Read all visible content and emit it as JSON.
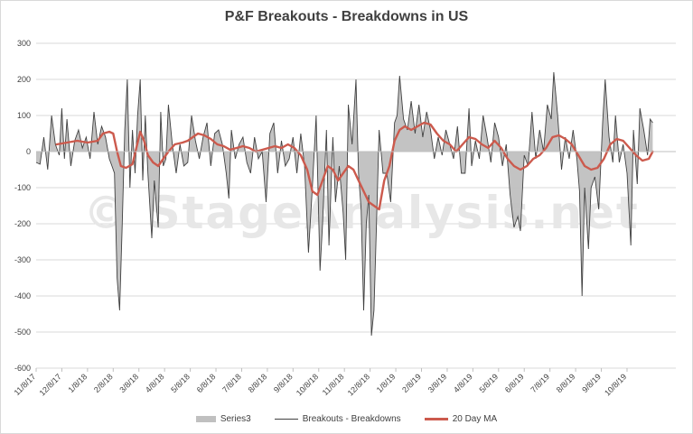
{
  "chart_data": {
    "type": "line",
    "title": "P&F Breakouts - Breakdowns in US",
    "watermark": "© StageAnalysis.net",
    "y_ticks": [
      300,
      200,
      100,
      0,
      -100,
      -200,
      -300,
      -400,
      -500,
      -600
    ],
    "ylim": [
      -600,
      300
    ],
    "x_ticks": [
      "11/8/17",
      "12/8/17",
      "1/8/18",
      "2/8/18",
      "3/8/18",
      "4/8/18",
      "5/8/18",
      "6/8/18",
      "7/8/18",
      "8/8/18",
      "9/8/18",
      "10/8/18",
      "11/8/18",
      "12/8/18",
      "1/8/19",
      "2/8/19",
      "3/8/19",
      "4/8/19",
      "5/8/19",
      "6/8/19",
      "7/8/19",
      "8/8/19",
      "9/8/19",
      "10/8/19"
    ],
    "x_range_months": [
      0,
      24.9
    ],
    "series": [
      {
        "name": "Series3",
        "style": "area",
        "color": "#c0c0c0",
        "same_values_as": "Breakouts - Breakdowns"
      },
      {
        "name": "Breakouts - Breakdowns",
        "style": "line",
        "color": "#404040",
        "points": [
          [
            0.0,
            -30
          ],
          [
            0.15,
            -35
          ],
          [
            0.3,
            40
          ],
          [
            0.45,
            -50
          ],
          [
            0.6,
            100
          ],
          [
            0.75,
            20
          ],
          [
            0.9,
            -10
          ],
          [
            1.0,
            120
          ],
          [
            1.1,
            -20
          ],
          [
            1.2,
            90
          ],
          [
            1.35,
            -40
          ],
          [
            1.5,
            30
          ],
          [
            1.65,
            60
          ],
          [
            1.8,
            10
          ],
          [
            1.95,
            40
          ],
          [
            2.1,
            -20
          ],
          [
            2.25,
            110
          ],
          [
            2.4,
            20
          ],
          [
            2.55,
            70
          ],
          [
            2.7,
            40
          ],
          [
            2.85,
            -20
          ],
          [
            2.95,
            -40
          ],
          [
            3.05,
            -60
          ],
          [
            3.15,
            -350
          ],
          [
            3.25,
            -440
          ],
          [
            3.35,
            -200
          ],
          [
            3.45,
            60
          ],
          [
            3.55,
            200
          ],
          [
            3.65,
            -100
          ],
          [
            3.75,
            60
          ],
          [
            3.85,
            -60
          ],
          [
            3.95,
            100
          ],
          [
            4.05,
            200
          ],
          [
            4.15,
            -80
          ],
          [
            4.25,
            100
          ],
          [
            4.35,
            -60
          ],
          [
            4.5,
            -240
          ],
          [
            4.6,
            -80
          ],
          [
            4.75,
            -210
          ],
          [
            4.85,
            110
          ],
          [
            4.95,
            -40
          ],
          [
            5.05,
            -20
          ],
          [
            5.15,
            130
          ],
          [
            5.3,
            20
          ],
          [
            5.45,
            -60
          ],
          [
            5.6,
            20
          ],
          [
            5.75,
            -40
          ],
          [
            5.9,
            -30
          ],
          [
            6.05,
            100
          ],
          [
            6.2,
            30
          ],
          [
            6.35,
            -20
          ],
          [
            6.5,
            40
          ],
          [
            6.65,
            80
          ],
          [
            6.8,
            -40
          ],
          [
            6.95,
            50
          ],
          [
            7.1,
            60
          ],
          [
            7.25,
            20
          ],
          [
            7.4,
            -60
          ],
          [
            7.5,
            -130
          ],
          [
            7.6,
            60
          ],
          [
            7.75,
            -20
          ],
          [
            7.9,
            20
          ],
          [
            8.05,
            40
          ],
          [
            8.2,
            -30
          ],
          [
            8.35,
            -60
          ],
          [
            8.5,
            40
          ],
          [
            8.65,
            -20
          ],
          [
            8.8,
            0
          ],
          [
            8.95,
            -140
          ],
          [
            9.1,
            50
          ],
          [
            9.25,
            80
          ],
          [
            9.4,
            -60
          ],
          [
            9.55,
            30
          ],
          [
            9.7,
            -40
          ],
          [
            9.85,
            -20
          ],
          [
            10.0,
            40
          ],
          [
            10.15,
            -60
          ],
          [
            10.3,
            50
          ],
          [
            10.45,
            -40
          ],
          [
            10.6,
            -280
          ],
          [
            10.75,
            -100
          ],
          [
            10.9,
            100
          ],
          [
            11.05,
            -330
          ],
          [
            11.15,
            -200
          ],
          [
            11.3,
            60
          ],
          [
            11.4,
            -260
          ],
          [
            11.55,
            40
          ],
          [
            11.65,
            -140
          ],
          [
            11.8,
            -40
          ],
          [
            11.95,
            -170
          ],
          [
            12.05,
            -300
          ],
          [
            12.15,
            130
          ],
          [
            12.3,
            20
          ],
          [
            12.45,
            200
          ],
          [
            12.55,
            -60
          ],
          [
            12.65,
            -160
          ],
          [
            12.75,
            -440
          ],
          [
            12.85,
            -200
          ],
          [
            12.95,
            -120
          ],
          [
            13.05,
            -510
          ],
          [
            13.15,
            -440
          ],
          [
            13.25,
            -200
          ],
          [
            13.35,
            60
          ],
          [
            13.5,
            -60
          ],
          [
            13.65,
            -60
          ],
          [
            13.8,
            -140
          ],
          [
            13.95,
            80
          ],
          [
            14.05,
            100
          ],
          [
            14.15,
            210
          ],
          [
            14.3,
            90
          ],
          [
            14.45,
            60
          ],
          [
            14.6,
            140
          ],
          [
            14.75,
            50
          ],
          [
            14.9,
            130
          ],
          [
            15.05,
            40
          ],
          [
            15.2,
            110
          ],
          [
            15.35,
            60
          ],
          [
            15.5,
            -20
          ],
          [
            15.65,
            40
          ],
          [
            15.8,
            -10
          ],
          [
            15.95,
            60
          ],
          [
            16.1,
            20
          ],
          [
            16.25,
            -20
          ],
          [
            16.4,
            70
          ],
          [
            16.55,
            -60
          ],
          [
            16.7,
            -60
          ],
          [
            16.85,
            120
          ],
          [
            16.95,
            -40
          ],
          [
            17.1,
            30
          ],
          [
            17.25,
            -20
          ],
          [
            17.4,
            100
          ],
          [
            17.55,
            40
          ],
          [
            17.7,
            -30
          ],
          [
            17.85,
            80
          ],
          [
            18.0,
            40
          ],
          [
            18.15,
            -40
          ],
          [
            18.3,
            20
          ],
          [
            18.45,
            -120
          ],
          [
            18.6,
            -210
          ],
          [
            18.75,
            -180
          ],
          [
            18.85,
            -220
          ],
          [
            19.0,
            -10
          ],
          [
            19.15,
            -40
          ],
          [
            19.3,
            110
          ],
          [
            19.45,
            -20
          ],
          [
            19.6,
            60
          ],
          [
            19.75,
            0
          ],
          [
            19.9,
            130
          ],
          [
            20.05,
            90
          ],
          [
            20.15,
            220
          ],
          [
            20.3,
            100
          ],
          [
            20.45,
            -50
          ],
          [
            20.6,
            40
          ],
          [
            20.75,
            -20
          ],
          [
            20.9,
            60
          ],
          [
            21.05,
            -20
          ],
          [
            21.15,
            -110
          ],
          [
            21.25,
            -400
          ],
          [
            21.35,
            -100
          ],
          [
            21.5,
            -270
          ],
          [
            21.6,
            -100
          ],
          [
            21.75,
            -70
          ],
          [
            21.9,
            -160
          ],
          [
            22.05,
            80
          ],
          [
            22.15,
            200
          ],
          [
            22.3,
            40
          ],
          [
            22.45,
            -30
          ],
          [
            22.55,
            100
          ],
          [
            22.7,
            -30
          ],
          [
            22.85,
            20
          ],
          [
            23.0,
            -60
          ],
          [
            23.15,
            -260
          ],
          [
            23.25,
            60
          ],
          [
            23.4,
            -90
          ],
          [
            23.5,
            120
          ],
          [
            23.65,
            60
          ],
          [
            23.8,
            -10
          ],
          [
            23.9,
            90
          ],
          [
            24.0,
            80
          ]
        ]
      },
      {
        "name": "20 Day MA",
        "style": "line",
        "color": "#cc5a4d",
        "points": [
          [
            0.8,
            20
          ],
          [
            1.2,
            25
          ],
          [
            1.6,
            30
          ],
          [
            2.0,
            25
          ],
          [
            2.4,
            30
          ],
          [
            2.6,
            50
          ],
          [
            2.85,
            55
          ],
          [
            3.0,
            50
          ],
          [
            3.15,
            0
          ],
          [
            3.3,
            -40
          ],
          [
            3.5,
            -45
          ],
          [
            3.75,
            -35
          ],
          [
            3.9,
            10
          ],
          [
            4.05,
            55
          ],
          [
            4.2,
            30
          ],
          [
            4.35,
            -10
          ],
          [
            4.55,
            -30
          ],
          [
            4.75,
            -40
          ],
          [
            4.95,
            -20
          ],
          [
            5.15,
            0
          ],
          [
            5.4,
            20
          ],
          [
            5.7,
            25
          ],
          [
            5.9,
            30
          ],
          [
            6.1,
            40
          ],
          [
            6.3,
            50
          ],
          [
            6.55,
            45
          ],
          [
            6.8,
            35
          ],
          [
            7.05,
            20
          ],
          [
            7.3,
            15
          ],
          [
            7.55,
            5
          ],
          [
            7.8,
            10
          ],
          [
            8.05,
            15
          ],
          [
            8.3,
            10
          ],
          [
            8.55,
            0
          ],
          [
            8.8,
            5
          ],
          [
            9.05,
            10
          ],
          [
            9.3,
            15
          ],
          [
            9.55,
            10
          ],
          [
            9.8,
            20
          ],
          [
            10.05,
            10
          ],
          [
            10.3,
            -10
          ],
          [
            10.55,
            -50
          ],
          [
            10.75,
            -110
          ],
          [
            10.95,
            -120
          ],
          [
            11.15,
            -80
          ],
          [
            11.35,
            -40
          ],
          [
            11.55,
            -50
          ],
          [
            11.75,
            -80
          ],
          [
            11.95,
            -60
          ],
          [
            12.15,
            -40
          ],
          [
            12.35,
            -50
          ],
          [
            12.55,
            -80
          ],
          [
            12.75,
            -110
          ],
          [
            12.95,
            -140
          ],
          [
            13.15,
            -150
          ],
          [
            13.35,
            -160
          ],
          [
            13.55,
            -80
          ],
          [
            13.75,
            -40
          ],
          [
            13.95,
            30
          ],
          [
            14.15,
            60
          ],
          [
            14.35,
            70
          ],
          [
            14.6,
            60
          ],
          [
            14.85,
            70
          ],
          [
            15.1,
            80
          ],
          [
            15.35,
            75
          ],
          [
            15.6,
            50
          ],
          [
            15.85,
            30
          ],
          [
            16.1,
            20
          ],
          [
            16.35,
            0
          ],
          [
            16.6,
            20
          ],
          [
            16.85,
            40
          ],
          [
            17.1,
            35
          ],
          [
            17.35,
            20
          ],
          [
            17.6,
            10
          ],
          [
            17.85,
            30
          ],
          [
            18.1,
            10
          ],
          [
            18.35,
            -20
          ],
          [
            18.6,
            -40
          ],
          [
            18.85,
            -50
          ],
          [
            19.1,
            -40
          ],
          [
            19.35,
            -20
          ],
          [
            19.6,
            -10
          ],
          [
            19.85,
            10
          ],
          [
            20.1,
            40
          ],
          [
            20.35,
            45
          ],
          [
            20.6,
            35
          ],
          [
            20.85,
            20
          ],
          [
            21.1,
            -10
          ],
          [
            21.35,
            -40
          ],
          [
            21.6,
            -50
          ],
          [
            21.85,
            -45
          ],
          [
            22.1,
            -20
          ],
          [
            22.35,
            20
          ],
          [
            22.6,
            35
          ],
          [
            22.85,
            30
          ],
          [
            23.1,
            10
          ],
          [
            23.35,
            -10
          ],
          [
            23.6,
            -25
          ],
          [
            23.85,
            -20
          ],
          [
            24.0,
            0
          ]
        ]
      }
    ],
    "legend": {
      "placement": "bottom",
      "entries": [
        "Series3",
        "Breakouts - Breakdowns",
        "20 Day MA"
      ]
    },
    "grid": "horizontal"
  }
}
